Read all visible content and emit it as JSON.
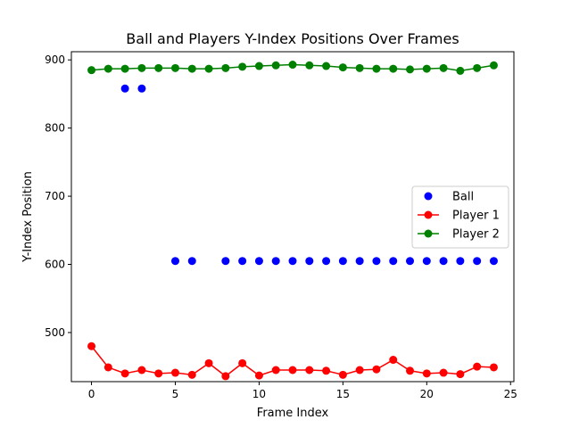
{
  "chart_data": {
    "type": "scatter",
    "title": "Ball and Players Y-Index Positions Over Frames",
    "xlabel": "Frame Index",
    "ylabel": "Y-Index Position",
    "xlim": [
      -1.2,
      25.2
    ],
    "ylim": [
      428,
      912
    ],
    "xticks": [
      0,
      5,
      10,
      15,
      20,
      25
    ],
    "yticks": [
      500,
      600,
      700,
      800,
      900
    ],
    "grid": false,
    "legend_position": "center-right",
    "series": [
      {
        "name": "Ball",
        "kind": "scatter",
        "color": "#0000ff",
        "x": [
          2,
          3,
          5,
          6,
          8,
          9,
          10,
          11,
          12,
          13,
          14,
          15,
          16,
          17,
          18,
          19,
          20,
          21,
          22,
          23,
          24
        ],
        "y": [
          858,
          858,
          605,
          605,
          605,
          605,
          605,
          605,
          605,
          605,
          605,
          605,
          605,
          605,
          605,
          605,
          605,
          605,
          605,
          605,
          605
        ]
      },
      {
        "name": "Player 1",
        "kind": "line",
        "color": "#ff0000",
        "x": [
          0,
          1,
          2,
          3,
          4,
          5,
          6,
          7,
          8,
          9,
          10,
          11,
          12,
          13,
          14,
          15,
          16,
          17,
          18,
          19,
          20,
          21,
          22,
          23,
          24
        ],
        "y": [
          480,
          449,
          440,
          445,
          440,
          441,
          438,
          455,
          436,
          455,
          437,
          445,
          445,
          445,
          444,
          438,
          445,
          446,
          460,
          444,
          440,
          441,
          439,
          450,
          449
        ]
      },
      {
        "name": "Player 2",
        "kind": "line",
        "color": "#008000",
        "x": [
          0,
          1,
          2,
          3,
          4,
          5,
          6,
          7,
          8,
          9,
          10,
          11,
          12,
          13,
          14,
          15,
          16,
          17,
          18,
          19,
          20,
          21,
          22,
          23,
          24
        ],
        "y": [
          885,
          887,
          887,
          888,
          888,
          888,
          887,
          887,
          888,
          890,
          891,
          892,
          893,
          892,
          891,
          889,
          888,
          887,
          887,
          886,
          887,
          888,
          884,
          888,
          892
        ]
      }
    ]
  }
}
